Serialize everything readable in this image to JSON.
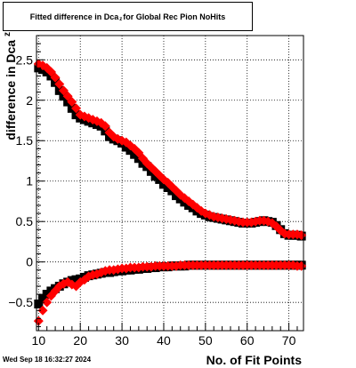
{
  "title": {
    "prefix": "Fitted difference in Dca",
    "subscript": "z",
    "suffix": "for Global Rec Pion NoHits"
  },
  "footer": {
    "timestamp": "Wed Sep 18 16:32:27 2024"
  },
  "chart_data": {
    "type": "scatter",
    "xlabel": "No. of Fit Points",
    "ylabel": "difference in Dca",
    "ylabel_subscript": "z",
    "xlim": [
      9.5,
      73.5
    ],
    "ylim": [
      -0.85,
      2.8
    ],
    "xticks": [
      10,
      20,
      30,
      40,
      50,
      60,
      70
    ],
    "yticks": [
      -0.5,
      0,
      0.5,
      1,
      1.5,
      2,
      2.5
    ],
    "ytick_labels": [
      "−0.5",
      "0",
      "0.5",
      "1",
      "1.5",
      "2",
      "2.5"
    ],
    "grid": true,
    "colors": {
      "series_black": "#000000",
      "series_red": "#ff0000"
    },
    "series": [
      {
        "color": "#000000",
        "marker": "square",
        "x": [
          10,
          11,
          12,
          13,
          14,
          15,
          16,
          17,
          18,
          19,
          20,
          21,
          22,
          23,
          24,
          25,
          26,
          27,
          28,
          29,
          30,
          31,
          32,
          33,
          34,
          35,
          36,
          37,
          38,
          39,
          40,
          41,
          42,
          43,
          44,
          45,
          46,
          47,
          48,
          49,
          50,
          51,
          52,
          53,
          54,
          55,
          56,
          57,
          58,
          59,
          60,
          61,
          62,
          63,
          64,
          65,
          66,
          67,
          68,
          69,
          70,
          71,
          72,
          73
        ],
        "y": [
          2.4,
          2.38,
          2.35,
          2.3,
          2.22,
          2.12,
          2.05,
          1.98,
          1.9,
          1.82,
          1.78,
          1.76,
          1.74,
          1.72,
          1.7,
          1.68,
          1.62,
          1.55,
          1.52,
          1.5,
          1.47,
          1.42,
          1.38,
          1.33,
          1.28,
          1.22,
          1.18,
          1.12,
          1.06,
          1.02,
          0.96,
          0.92,
          0.88,
          0.82,
          0.78,
          0.74,
          0.7,
          0.67,
          0.63,
          0.6,
          0.58,
          0.56,
          0.55,
          0.54,
          0.53,
          0.52,
          0.51,
          0.5,
          0.49,
          0.48,
          0.48,
          0.48,
          0.49,
          0.5,
          0.51,
          0.5,
          0.49,
          0.45,
          0.4,
          0.35,
          0.33,
          0.33,
          0.33,
          0.32
        ]
      },
      {
        "color": "#ff0000",
        "marker": "diamond",
        "x": [
          10,
          11,
          12,
          13,
          14,
          15,
          16,
          17,
          18,
          19,
          20,
          21,
          22,
          23,
          24,
          25,
          26,
          27,
          28,
          29,
          30,
          31,
          32,
          33,
          34,
          35,
          36,
          37,
          38,
          39,
          40,
          41,
          42,
          43,
          44,
          45,
          46,
          47,
          48,
          49,
          50,
          51,
          52,
          53,
          54,
          55,
          56,
          57,
          58,
          59,
          60,
          61,
          62,
          63,
          64,
          65,
          66,
          67,
          68,
          69,
          70,
          71,
          72,
          73
        ],
        "y": [
          2.45,
          2.43,
          2.4,
          2.35,
          2.28,
          2.2,
          2.12,
          2.05,
          1.98,
          1.9,
          1.82,
          1.8,
          1.78,
          1.76,
          1.74,
          1.72,
          1.68,
          1.6,
          1.55,
          1.52,
          1.5,
          1.48,
          1.44,
          1.4,
          1.35,
          1.28,
          1.22,
          1.17,
          1.12,
          1.07,
          1.02,
          0.98,
          0.93,
          0.88,
          0.83,
          0.79,
          0.75,
          0.71,
          0.67,
          0.63,
          0.6,
          0.58,
          0.56,
          0.55,
          0.54,
          0.53,
          0.52,
          0.51,
          0.5,
          0.49,
          0.49,
          0.49,
          0.5,
          0.51,
          0.51,
          0.5,
          0.48,
          0.44,
          0.39,
          0.35,
          0.34,
          0.34,
          0.34,
          0.33
        ]
      },
      {
        "color": "#000000",
        "marker": "square",
        "x": [
          10,
          11,
          12,
          13,
          14,
          15,
          16,
          17,
          18,
          19,
          20,
          21,
          22,
          23,
          24,
          25,
          26,
          27,
          28,
          29,
          30,
          31,
          32,
          33,
          34,
          35,
          36,
          37,
          38,
          39,
          40,
          41,
          42,
          43,
          44,
          45,
          46,
          47,
          48,
          49,
          50,
          51,
          52,
          53,
          54,
          55,
          56,
          57,
          58,
          59,
          60,
          61,
          62,
          63,
          64,
          65,
          66,
          67,
          68,
          69,
          70,
          71,
          72,
          73
        ],
        "y": [
          -0.52,
          -0.45,
          -0.4,
          -0.36,
          -0.33,
          -0.3,
          -0.27,
          -0.25,
          -0.23,
          -0.22,
          -0.21,
          -0.19,
          -0.17,
          -0.16,
          -0.15,
          -0.14,
          -0.13,
          -0.13,
          -0.12,
          -0.11,
          -0.11,
          -0.1,
          -0.1,
          -0.09,
          -0.09,
          -0.08,
          -0.08,
          -0.07,
          -0.07,
          -0.06,
          -0.06,
          -0.06,
          -0.05,
          -0.05,
          -0.05,
          -0.05,
          -0.04,
          -0.04,
          -0.04,
          -0.04,
          -0.04,
          -0.04,
          -0.04,
          -0.04,
          -0.04,
          -0.04,
          -0.04,
          -0.04,
          -0.04,
          -0.04,
          -0.04,
          -0.04,
          -0.04,
          -0.04,
          -0.04,
          -0.04,
          -0.04,
          -0.04,
          -0.04,
          -0.04,
          -0.04,
          -0.04,
          -0.04,
          -0.04
        ]
      },
      {
        "color": "#ff0000",
        "marker": "diamond",
        "x": [
          10,
          11,
          12,
          13,
          14,
          15,
          16,
          17,
          18,
          19,
          20,
          21,
          22,
          23,
          24,
          25,
          26,
          27,
          28,
          29,
          30,
          31,
          32,
          33,
          34,
          35,
          36,
          37,
          38,
          39,
          40,
          41,
          42,
          43,
          44,
          45,
          46,
          47,
          48,
          49,
          50,
          51,
          52,
          53,
          54,
          55,
          56,
          57,
          58,
          59,
          60,
          61,
          62,
          63,
          64,
          65,
          66,
          67,
          68,
          69,
          70,
          71,
          72,
          73
        ],
        "y": [
          -0.73,
          -0.6,
          -0.5,
          -0.42,
          -0.36,
          -0.3,
          -0.27,
          -0.25,
          -0.28,
          -0.3,
          -0.25,
          -0.22,
          -0.18,
          -0.16,
          -0.15,
          -0.13,
          -0.11,
          -0.1,
          -0.1,
          -0.09,
          -0.08,
          -0.08,
          -0.07,
          -0.07,
          -0.07,
          -0.06,
          -0.06,
          -0.06,
          -0.05,
          -0.05,
          -0.05,
          -0.05,
          -0.05,
          -0.05,
          -0.04,
          -0.04,
          -0.04,
          -0.04,
          -0.04,
          -0.04,
          -0.04,
          -0.04,
          -0.04,
          -0.04,
          -0.04,
          -0.04,
          -0.04,
          -0.04,
          -0.04,
          -0.04,
          -0.04,
          -0.04,
          -0.04,
          -0.04,
          -0.04,
          -0.04,
          -0.04,
          -0.04,
          -0.04,
          -0.04,
          -0.04,
          -0.04,
          -0.05,
          -0.05
        ]
      }
    ]
  }
}
